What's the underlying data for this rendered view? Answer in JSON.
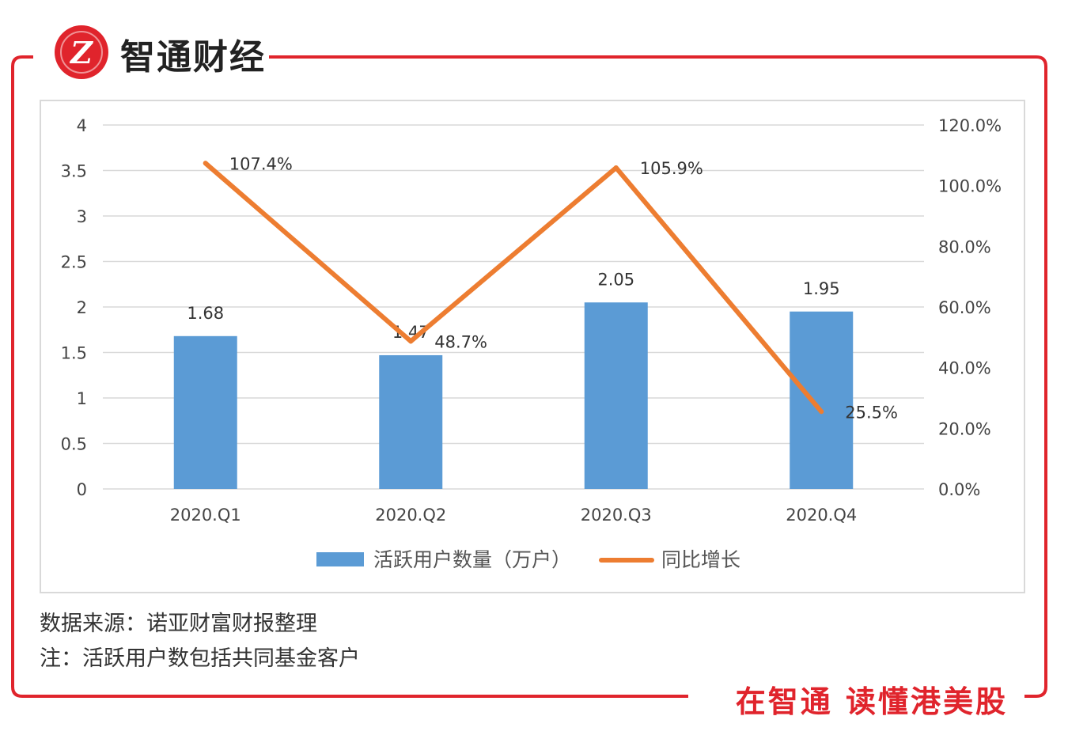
{
  "brand": {
    "name": "智通财经",
    "logo_letter": "Z",
    "slogan": "在智通  读懂港美股",
    "accent_color": "#e0242c"
  },
  "chart_data": {
    "type": "bar",
    "categories": [
      "2020.Q1",
      "2020.Q2",
      "2020.Q3",
      "2020.Q4"
    ],
    "series": [
      {
        "name": "活跃用户数量（万户）",
        "type": "bar",
        "axis": "left",
        "color": "#5b9bd5",
        "values": [
          1.68,
          1.47,
          2.05,
          1.95
        ],
        "labels": [
          "1.68",
          "1.47",
          "2.05",
          "1.95"
        ]
      },
      {
        "name": "同比增长",
        "type": "line",
        "axis": "right",
        "color": "#ed7d31",
        "values": [
          107.4,
          48.7,
          105.9,
          25.5
        ],
        "labels": [
          "107.4%",
          "48.7%",
          "105.9%",
          "25.5%"
        ]
      }
    ],
    "left_axis": {
      "ylim": [
        0,
        4
      ],
      "ticks": [
        0,
        0.5,
        1,
        1.5,
        2,
        2.5,
        3,
        3.5,
        4
      ],
      "tick_labels": [
        "0",
        "0.5",
        "1",
        "1.5",
        "2",
        "2.5",
        "3",
        "3.5",
        "4"
      ]
    },
    "right_axis": {
      "ylim": [
        0,
        120
      ],
      "ticks": [
        0,
        20,
        40,
        60,
        80,
        100,
        120
      ],
      "tick_labels": [
        "0.0%",
        "20.0%",
        "40.0%",
        "60.0%",
        "80.0%",
        "100.0%",
        "120.0%"
      ]
    },
    "grid": true,
    "legend_position": "bottom"
  },
  "notes": {
    "source": "数据来源：诺亚财富财报整理",
    "note": "注：活跃用户数包括共同基金客户"
  }
}
